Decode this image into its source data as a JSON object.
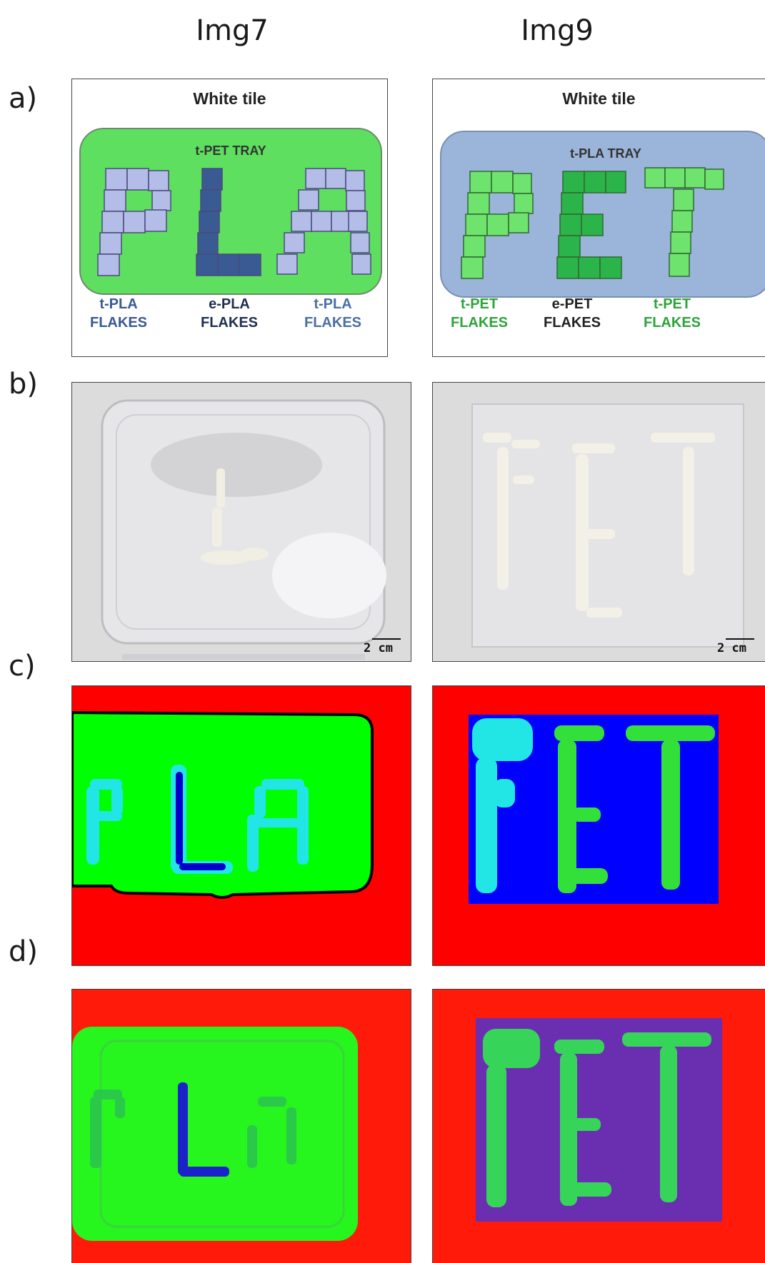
{
  "columns": [
    "Img7",
    "Img9"
  ],
  "rows": [
    "a)",
    "b)",
    "c)",
    "d)"
  ],
  "panel_a_left": {
    "tile": "White tile",
    "tray": "t-PET TRAY",
    "letters": "PLA",
    "flakes": [
      {
        "line1": "t-PLA",
        "line2": "FLAKES"
      },
      {
        "line1": "e-PLA",
        "line2": "FLAKES"
      },
      {
        "line1": "t-PLA",
        "line2": "FLAKES"
      }
    ]
  },
  "panel_a_right": {
    "tile": "White tile",
    "tray": "t-PLA TRAY",
    "letters": "PET",
    "flakes": [
      {
        "line1": "t-PET",
        "line2": "FLAKES"
      },
      {
        "line1": "e-PET",
        "line2": "FLAKES"
      },
      {
        "line1": "t-PET",
        "line2": "FLAKES"
      }
    ]
  },
  "scale_bar": "2 cm",
  "colors": {
    "pet_tray": "#5fdf5f",
    "pla_tray": "#9bb4d9",
    "t_pla_flake": "#b3bde8",
    "e_pla_flake": "#3a5a93",
    "t_pet_flake": "#6ee36e",
    "e_pet_flake": "#2bb44a",
    "class_red": "#ff0000",
    "class_green": "#00ff00",
    "class_blue": "#0000ff",
    "class_cyan": "#22e5e5",
    "pca_purple": "#6a2fb0"
  }
}
